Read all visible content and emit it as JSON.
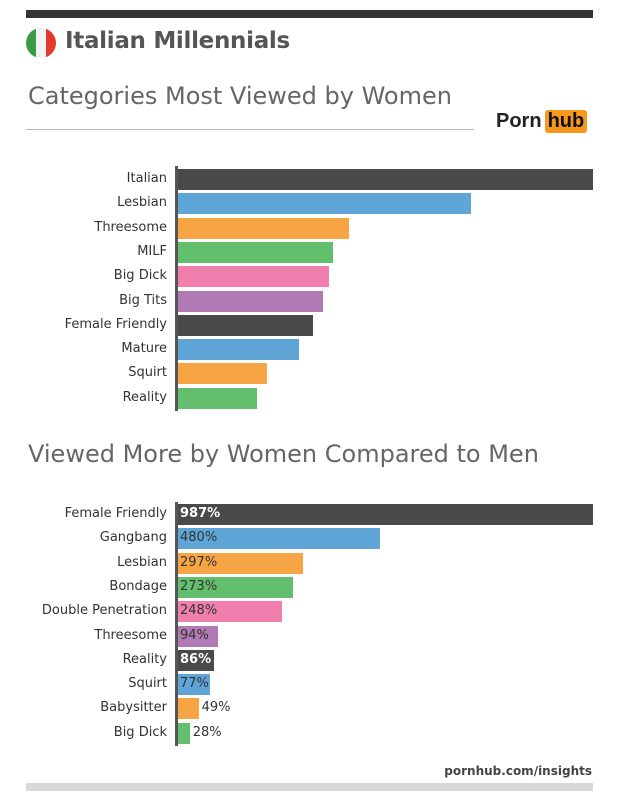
{
  "header": {
    "title": "Italian Millennials",
    "flag_colors": [
      "#3a9a48",
      "#f2f2f2",
      "#e33a2c"
    ]
  },
  "logo": {
    "part1": "Porn",
    "part2": "hub",
    "accent": "#f7971e"
  },
  "footer": {
    "source": "pornhub.com/insights"
  },
  "palette": [
    "#4a4a4a",
    "#5fa5d8",
    "#f7a444",
    "#63bf6e",
    "#f07fae",
    "#b27ab4"
  ],
  "chart_data": [
    {
      "type": "bar",
      "orientation": "horizontal",
      "title": "Categories Most Viewed by Women",
      "categories": [
        "Italian",
        "Lesbian",
        "Threesome",
        "MILF",
        "Big Dick",
        "Big Tits",
        "Female Friendly",
        "Mature",
        "Squirt",
        "Reality"
      ],
      "values": [
        100,
        70.7,
        41.1,
        37.3,
        36.3,
        34.9,
        32.5,
        29.1,
        21.4,
        19.0
      ],
      "xlim": [
        0,
        100
      ],
      "grid": false,
      "legend": "none"
    },
    {
      "type": "bar",
      "orientation": "horizontal",
      "title": "Viewed More by Women Compared to Men",
      "categories": [
        "Female Friendly",
        "Gangbang",
        "Lesbian",
        "Bondage",
        "Double Penetration",
        "Threesome",
        "Reality",
        "Squirt",
        "Babysitter",
        "Big Dick"
      ],
      "values": [
        987,
        480,
        297,
        273,
        248,
        94,
        86,
        77,
        49,
        28
      ],
      "labels": [
        "987%",
        "480%",
        "297%",
        "273%",
        "248%",
        "94%",
        "86%",
        "77%",
        "49%",
        "28%"
      ],
      "xlim": [
        0,
        987
      ],
      "grid": false,
      "legend": "none"
    }
  ]
}
